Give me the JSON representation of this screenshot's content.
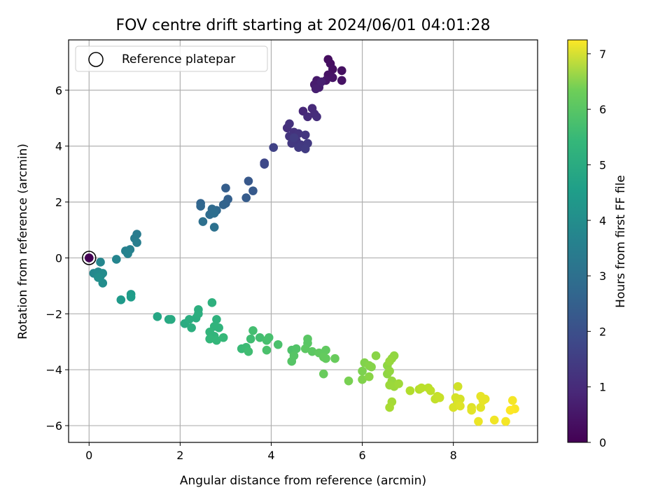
{
  "chart_data": {
    "type": "scatter",
    "title": "FOV centre drift starting at 2024/06/01 04:01:28",
    "xlabel": "Angular distance from reference (arcmin)",
    "ylabel": "Rotation from reference (arcmin)",
    "xlim": [
      -0.45,
      9.85
    ],
    "ylim": [
      -6.6,
      7.8
    ],
    "xticks": [
      0,
      2,
      4,
      6,
      8
    ],
    "yticks": [
      -6,
      -4,
      -2,
      0,
      2,
      4,
      6
    ],
    "grid": true,
    "legend": {
      "label": "Reference platepar",
      "placement": "upper-left",
      "marker": "open-circle"
    },
    "reference_point": {
      "x": 0,
      "y": 0
    },
    "colorbar": {
      "label": "Hours from first FF file",
      "range": [
        0,
        7.25
      ],
      "ticks": [
        0,
        1,
        2,
        3,
        4,
        5,
        6,
        7
      ],
      "colormap": "viridis"
    },
    "points": [
      {
        "x": 0.0,
        "y": 0.0,
        "t": 0.0
      },
      {
        "x": 5.25,
        "y": 7.1,
        "t": 0.25
      },
      {
        "x": 5.3,
        "y": 6.95,
        "t": 0.27
      },
      {
        "x": 5.35,
        "y": 6.75,
        "t": 0.3
      },
      {
        "x": 5.55,
        "y": 6.7,
        "t": 0.3
      },
      {
        "x": 5.55,
        "y": 6.35,
        "t": 0.35
      },
      {
        "x": 5.25,
        "y": 6.55,
        "t": 0.37
      },
      {
        "x": 5.35,
        "y": 6.45,
        "t": 0.4
      },
      {
        "x": 5.2,
        "y": 6.35,
        "t": 0.45
      },
      {
        "x": 5.0,
        "y": 6.35,
        "t": 0.5
      },
      {
        "x": 4.95,
        "y": 6.2,
        "t": 0.55
      },
      {
        "x": 5.05,
        "y": 6.1,
        "t": 0.6
      },
      {
        "x": 4.98,
        "y": 6.05,
        "t": 0.62
      },
      {
        "x": 5.1,
        "y": 6.3,
        "t": 0.65
      },
      {
        "x": 4.7,
        "y": 5.25,
        "t": 0.8
      },
      {
        "x": 4.9,
        "y": 5.35,
        "t": 0.85
      },
      {
        "x": 4.95,
        "y": 5.15,
        "t": 0.9
      },
      {
        "x": 4.8,
        "y": 5.05,
        "t": 0.9
      },
      {
        "x": 5.0,
        "y": 5.05,
        "t": 0.95
      },
      {
        "x": 4.35,
        "y": 4.65,
        "t": 1.0
      },
      {
        "x": 4.4,
        "y": 4.8,
        "t": 1.05
      },
      {
        "x": 4.5,
        "y": 4.5,
        "t": 1.05
      },
      {
        "x": 4.4,
        "y": 4.35,
        "t": 1.1
      },
      {
        "x": 4.6,
        "y": 4.45,
        "t": 1.1
      },
      {
        "x": 4.55,
        "y": 4.2,
        "t": 1.15
      },
      {
        "x": 4.75,
        "y": 4.4,
        "t": 1.15
      },
      {
        "x": 4.45,
        "y": 4.1,
        "t": 1.2
      },
      {
        "x": 4.65,
        "y": 4.05,
        "t": 1.2
      },
      {
        "x": 4.8,
        "y": 4.1,
        "t": 1.25
      },
      {
        "x": 4.6,
        "y": 3.95,
        "t": 1.25
      },
      {
        "x": 4.75,
        "y": 3.9,
        "t": 1.3
      },
      {
        "x": 4.5,
        "y": 4.3,
        "t": 1.3
      },
      {
        "x": 4.05,
        "y": 3.95,
        "t": 1.45
      },
      {
        "x": 3.85,
        "y": 3.4,
        "t": 1.55
      },
      {
        "x": 3.85,
        "y": 3.35,
        "t": 1.6
      },
      {
        "x": 3.5,
        "y": 2.75,
        "t": 2.0
      },
      {
        "x": 3.6,
        "y": 2.4,
        "t": 2.05
      },
      {
        "x": 3.45,
        "y": 2.15,
        "t": 2.1
      },
      {
        "x": 3.0,
        "y": 2.5,
        "t": 2.15
      },
      {
        "x": 3.05,
        "y": 2.1,
        "t": 2.2
      },
      {
        "x": 3.0,
        "y": 1.95,
        "t": 2.25
      },
      {
        "x": 2.95,
        "y": 1.9,
        "t": 2.3
      },
      {
        "x": 2.45,
        "y": 1.95,
        "t": 2.35
      },
      {
        "x": 2.45,
        "y": 1.85,
        "t": 2.4
      },
      {
        "x": 2.8,
        "y": 1.7,
        "t": 2.45
      },
      {
        "x": 2.7,
        "y": 1.75,
        "t": 2.5
      },
      {
        "x": 2.65,
        "y": 1.55,
        "t": 2.55
      },
      {
        "x": 2.75,
        "y": 1.6,
        "t": 2.6
      },
      {
        "x": 2.5,
        "y": 1.3,
        "t": 2.65
      },
      {
        "x": 2.75,
        "y": 1.1,
        "t": 2.7
      },
      {
        "x": 1.05,
        "y": 0.85,
        "t": 3.0
      },
      {
        "x": 1.0,
        "y": 0.7,
        "t": 3.05
      },
      {
        "x": 1.05,
        "y": 0.55,
        "t": 3.1
      },
      {
        "x": 0.9,
        "y": 0.3,
        "t": 3.15
      },
      {
        "x": 0.8,
        "y": 0.25,
        "t": 3.2
      },
      {
        "x": 0.85,
        "y": 0.15,
        "t": 3.25
      },
      {
        "x": 0.6,
        "y": -0.05,
        "t": 3.3
      },
      {
        "x": 0.25,
        "y": -0.15,
        "t": 3.35
      },
      {
        "x": 0.1,
        "y": -0.55,
        "t": 3.4
      },
      {
        "x": 0.2,
        "y": -0.5,
        "t": 3.45
      },
      {
        "x": 0.25,
        "y": -0.65,
        "t": 3.5
      },
      {
        "x": 0.3,
        "y": -0.55,
        "t": 3.5
      },
      {
        "x": 0.3,
        "y": -0.9,
        "t": 3.55
      },
      {
        "x": 0.2,
        "y": -0.7,
        "t": 3.6
      },
      {
        "x": 0.7,
        "y": -1.5,
        "t": 3.9
      },
      {
        "x": 0.92,
        "y": -1.3,
        "t": 3.95
      },
      {
        "x": 0.92,
        "y": -1.4,
        "t": 4.0
      },
      {
        "x": 1.5,
        "y": -2.1,
        "t": 4.3
      },
      {
        "x": 1.75,
        "y": -2.2,
        "t": 4.35
      },
      {
        "x": 1.8,
        "y": -2.2,
        "t": 4.4
      },
      {
        "x": 2.1,
        "y": -2.35,
        "t": 4.45
      },
      {
        "x": 2.2,
        "y": -2.2,
        "t": 4.5
      },
      {
        "x": 2.35,
        "y": -2.15,
        "t": 4.5
      },
      {
        "x": 2.25,
        "y": -2.5,
        "t": 4.55
      },
      {
        "x": 2.4,
        "y": -1.85,
        "t": 4.55
      },
      {
        "x": 2.4,
        "y": -2.0,
        "t": 4.55
      },
      {
        "x": 2.7,
        "y": -1.6,
        "t": 4.6
      },
      {
        "x": 2.8,
        "y": -2.2,
        "t": 4.65
      },
      {
        "x": 2.75,
        "y": -2.45,
        "t": 4.7
      },
      {
        "x": 2.85,
        "y": -2.5,
        "t": 4.7
      },
      {
        "x": 2.65,
        "y": -2.65,
        "t": 4.75
      },
      {
        "x": 2.75,
        "y": -2.8,
        "t": 4.75
      },
      {
        "x": 2.65,
        "y": -2.9,
        "t": 4.8
      },
      {
        "x": 2.8,
        "y": -2.95,
        "t": 4.8
      },
      {
        "x": 2.95,
        "y": -2.85,
        "t": 4.85
      },
      {
        "x": 3.35,
        "y": -3.25,
        "t": 4.9
      },
      {
        "x": 3.45,
        "y": -3.2,
        "t": 4.95
      },
      {
        "x": 3.55,
        "y": -2.9,
        "t": 5.0
      },
      {
        "x": 3.5,
        "y": -3.35,
        "t": 5.0
      },
      {
        "x": 3.6,
        "y": -2.6,
        "t": 5.05
      },
      {
        "x": 3.75,
        "y": -2.85,
        "t": 5.05
      },
      {
        "x": 3.9,
        "y": -2.95,
        "t": 5.1
      },
      {
        "x": 3.95,
        "y": -2.85,
        "t": 5.1
      },
      {
        "x": 3.9,
        "y": -3.3,
        "t": 5.15
      },
      {
        "x": 4.15,
        "y": -3.1,
        "t": 5.15
      },
      {
        "x": 4.45,
        "y": -3.3,
        "t": 5.2
      },
      {
        "x": 4.55,
        "y": -3.25,
        "t": 5.25
      },
      {
        "x": 4.5,
        "y": -3.5,
        "t": 5.3
      },
      {
        "x": 4.45,
        "y": -3.7,
        "t": 5.3
      },
      {
        "x": 4.8,
        "y": -2.9,
        "t": 5.35
      },
      {
        "x": 4.8,
        "y": -3.05,
        "t": 5.35
      },
      {
        "x": 4.75,
        "y": -3.25,
        "t": 5.4
      },
      {
        "x": 4.9,
        "y": -3.35,
        "t": 5.4
      },
      {
        "x": 5.05,
        "y": -3.4,
        "t": 5.45
      },
      {
        "x": 5.2,
        "y": -3.3,
        "t": 5.45
      },
      {
        "x": 5.15,
        "y": -3.55,
        "t": 5.5
      },
      {
        "x": 5.2,
        "y": -3.6,
        "t": 5.5
      },
      {
        "x": 5.4,
        "y": -3.6,
        "t": 5.55
      },
      {
        "x": 5.15,
        "y": -4.15,
        "t": 5.55
      },
      {
        "x": 5.7,
        "y": -4.4,
        "t": 5.75
      },
      {
        "x": 6.0,
        "y": -4.05,
        "t": 5.8
      },
      {
        "x": 6.0,
        "y": -4.35,
        "t": 5.85
      },
      {
        "x": 6.05,
        "y": -3.75,
        "t": 5.85
      },
      {
        "x": 6.15,
        "y": -3.85,
        "t": 5.9
      },
      {
        "x": 6.2,
        "y": -3.9,
        "t": 5.9
      },
      {
        "x": 6.15,
        "y": -4.25,
        "t": 5.95
      },
      {
        "x": 6.3,
        "y": -3.5,
        "t": 5.95
      },
      {
        "x": 6.55,
        "y": -3.85,
        "t": 6.0
      },
      {
        "x": 6.55,
        "y": -4.15,
        "t": 6.0
      },
      {
        "x": 6.6,
        "y": -4.05,
        "t": 6.05
      },
      {
        "x": 6.65,
        "y": -3.6,
        "t": 6.05
      },
      {
        "x": 6.7,
        "y": -3.5,
        "t": 6.05
      },
      {
        "x": 6.6,
        "y": -3.7,
        "t": 6.1
      },
      {
        "x": 6.65,
        "y": -4.4,
        "t": 6.1
      },
      {
        "x": 6.6,
        "y": -4.55,
        "t": 6.15
      },
      {
        "x": 6.7,
        "y": -4.6,
        "t": 6.15
      },
      {
        "x": 6.8,
        "y": -4.5,
        "t": 6.2
      },
      {
        "x": 6.65,
        "y": -5.15,
        "t": 6.25
      },
      {
        "x": 6.6,
        "y": -5.35,
        "t": 6.3
      },
      {
        "x": 7.05,
        "y": -4.75,
        "t": 6.4
      },
      {
        "x": 7.25,
        "y": -4.7,
        "t": 6.45
      },
      {
        "x": 7.3,
        "y": -4.65,
        "t": 6.5
      },
      {
        "x": 7.45,
        "y": -4.65,
        "t": 6.5
      },
      {
        "x": 7.5,
        "y": -4.75,
        "t": 6.55
      },
      {
        "x": 7.6,
        "y": -5.05,
        "t": 6.6
      },
      {
        "x": 7.65,
        "y": -4.95,
        "t": 6.6
      },
      {
        "x": 7.7,
        "y": -5.0,
        "t": 6.65
      },
      {
        "x": 8.1,
        "y": -4.6,
        "t": 6.75
      },
      {
        "x": 8.05,
        "y": -5.0,
        "t": 6.8
      },
      {
        "x": 8.15,
        "y": -5.05,
        "t": 6.8
      },
      {
        "x": 8.1,
        "y": -5.2,
        "t": 6.85
      },
      {
        "x": 8.0,
        "y": -5.35,
        "t": 6.85
      },
      {
        "x": 8.15,
        "y": -5.3,
        "t": 6.9
      },
      {
        "x": 8.4,
        "y": -5.35,
        "t": 6.9
      },
      {
        "x": 8.4,
        "y": -5.45,
        "t": 6.95
      },
      {
        "x": 8.6,
        "y": -5.35,
        "t": 6.95
      },
      {
        "x": 8.6,
        "y": -4.95,
        "t": 7.0
      },
      {
        "x": 8.65,
        "y": -5.1,
        "t": 7.0
      },
      {
        "x": 8.7,
        "y": -5.05,
        "t": 7.0
      },
      {
        "x": 8.55,
        "y": -5.85,
        "t": 7.05
      },
      {
        "x": 8.9,
        "y": -5.8,
        "t": 7.1
      },
      {
        "x": 9.15,
        "y": -5.85,
        "t": 7.15
      },
      {
        "x": 9.3,
        "y": -5.1,
        "t": 7.15
      },
      {
        "x": 9.35,
        "y": -5.4,
        "t": 7.2
      },
      {
        "x": 9.25,
        "y": -5.45,
        "t": 7.25
      }
    ]
  }
}
